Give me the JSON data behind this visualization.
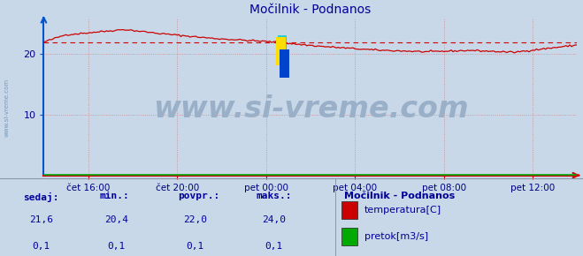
{
  "title": "Močilnik - Podnanos",
  "title_color": "#000099",
  "title_fontsize": 10,
  "fig_bg_color": "#c8d8e8",
  "plot_bg_color": "#c8d8e8",
  "grid_color": "#cc8888",
  "grid_style": ":",
  "x_axis_color": "#cc0000",
  "y_axis_color": "#0055cc",
  "tick_label_color": "#000080",
  "ylim": [
    0,
    26
  ],
  "yticks": [
    10,
    20
  ],
  "xtick_labels": [
    "čet 16:00",
    "čet 20:00",
    "pet 00:00",
    "pet 04:00",
    "pet 08:00",
    "pet 12:00"
  ],
  "xtick_positions": [
    60,
    180,
    300,
    420,
    540,
    660
  ],
  "temp_color": "#cc0000",
  "flow_color": "#00aa00",
  "avg_line_color": "#cc0000",
  "avg_value": 22.0,
  "watermark_text": "www.si-vreme.com",
  "watermark_color": "#9ab0c8",
  "watermark_fontsize": 24,
  "watermark_icon_yellow": "#ffdd00",
  "watermark_icon_blue": "#0044cc",
  "watermark_icon_cyan": "#00cccc",
  "sedaj_label": "sedaj:",
  "min_label": "min.:",
  "povpr_label": "povpr.:",
  "maks_label": "maks.:",
  "legend_title": "Močilnik - Podnanos",
  "legend_items": [
    "temperatura[C]",
    "pretok[m3/s]"
  ],
  "legend_colors": [
    "#cc0000",
    "#00aa00"
  ],
  "stats_temp": [
    "21,6",
    "20,4",
    "22,0",
    "24,0"
  ],
  "stats_flow": [
    "0,1",
    "0,1",
    "0,1",
    "0,1"
  ],
  "label_color": "#000099",
  "n_points": 289,
  "xlim": [
    0,
    720
  ]
}
